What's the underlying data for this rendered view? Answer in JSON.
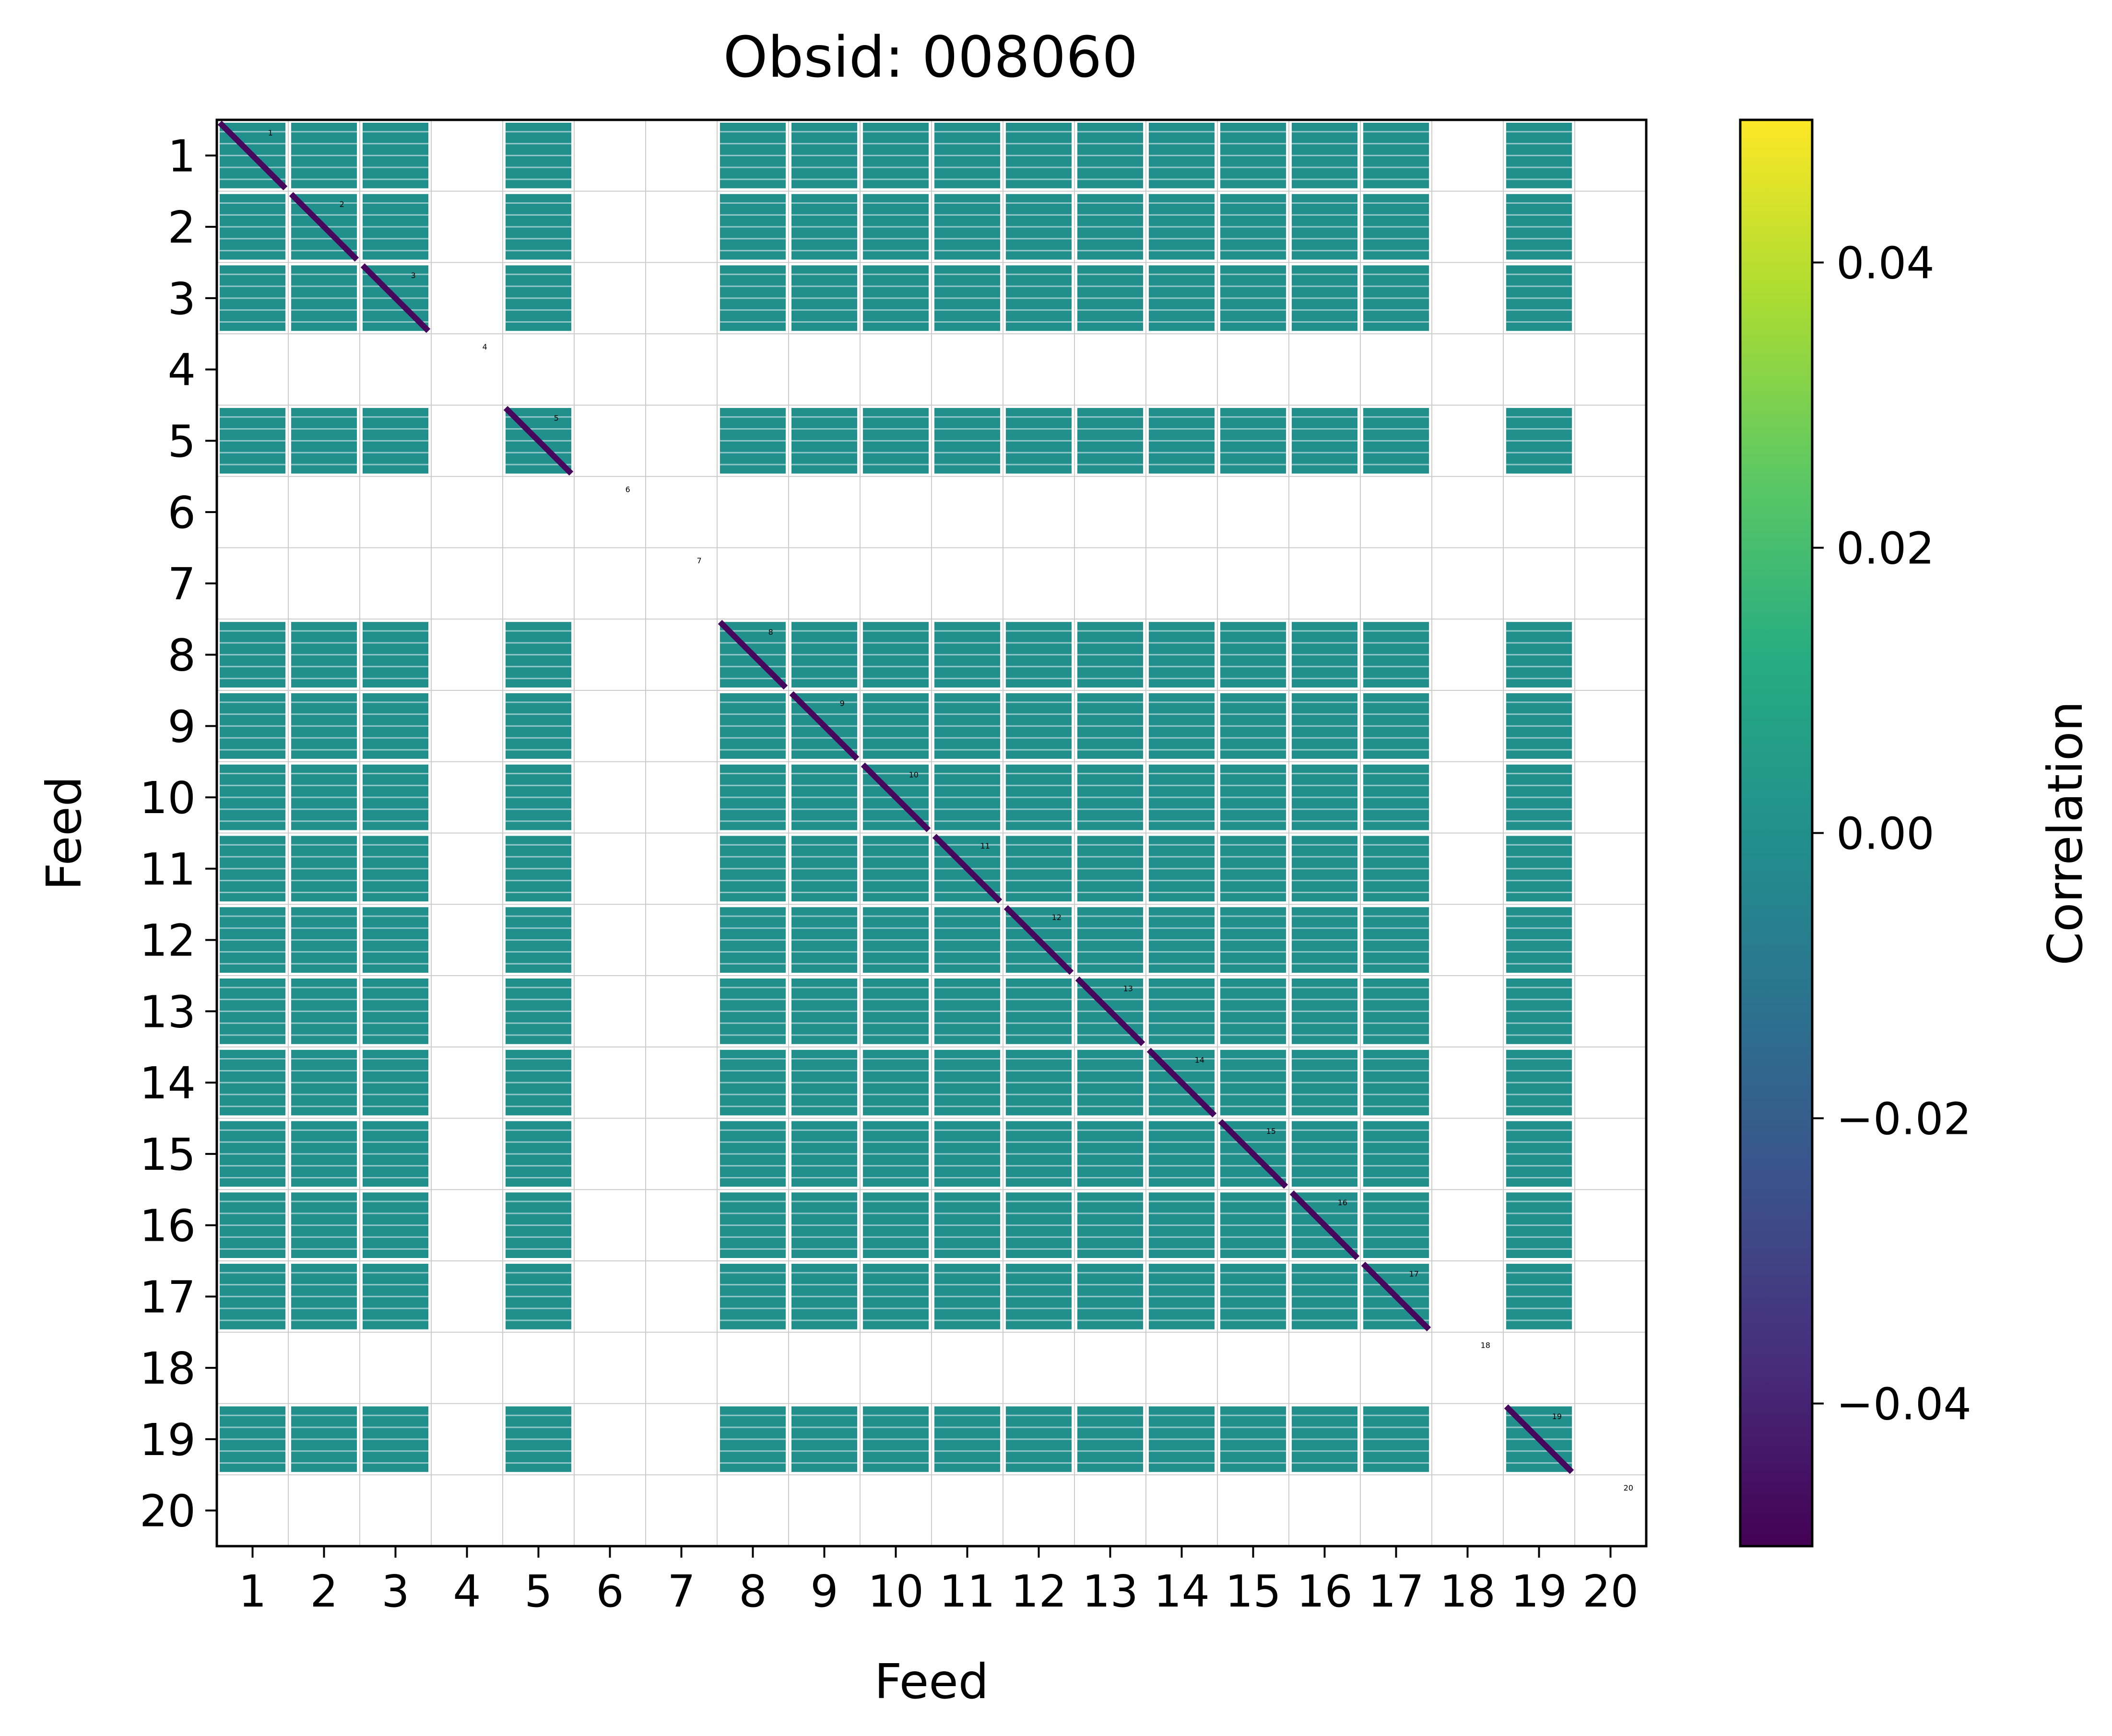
{
  "chart_data": {
    "type": "heatmap",
    "title": "Obsid: 008060",
    "xlabel": "Feed",
    "ylabel": "Feed",
    "categories": [
      "1",
      "2",
      "3",
      "4",
      "5",
      "6",
      "7",
      "8",
      "9",
      "10",
      "11",
      "12",
      "13",
      "14",
      "15",
      "16",
      "17",
      "18",
      "19",
      "20"
    ],
    "x_tick_labels": [
      "1",
      "2",
      "3",
      "4",
      "5",
      "6",
      "7",
      "8",
      "9",
      "10",
      "11",
      "12",
      "13",
      "14",
      "15",
      "16",
      "17",
      "18",
      "19",
      "20"
    ],
    "y_tick_labels": [
      "1",
      "2",
      "3",
      "4",
      "5",
      "6",
      "7",
      "8",
      "9",
      "10",
      "11",
      "12",
      "13",
      "14",
      "15",
      "16",
      "17",
      "18",
      "19",
      "20"
    ],
    "diagonal_labels": [
      "1",
      "2",
      "3",
      "4",
      "5",
      "6",
      "7",
      "8",
      "9",
      "10",
      "11",
      "12",
      "13",
      "14",
      "15",
      "16",
      "17",
      "18",
      "19",
      "20"
    ],
    "active_feeds": [
      "1",
      "2",
      "3",
      "5",
      "8",
      "9",
      "10",
      "11",
      "12",
      "13",
      "14",
      "15",
      "16",
      "17",
      "19"
    ],
    "empty_feeds": [
      "4",
      "6",
      "7",
      "18",
      "20"
    ],
    "fill_value": 0.0,
    "diagonal_value": -0.05,
    "colorbar": {
      "label": "Correlation",
      "vmin": -0.05,
      "vmax": 0.05,
      "ticks": [
        -0.04,
        -0.02,
        0.0,
        0.02,
        0.04
      ],
      "tick_labels": [
        "−0.04",
        "−0.02",
        "0.00",
        "0.02",
        "0.04"
      ],
      "colormap": "viridis"
    },
    "grid": true
  },
  "colors": {
    "fill": "#21908d",
    "diagonal": "#46085c",
    "grid": "#cccccc",
    "viridis_stops": [
      "#440154",
      "#472c7a",
      "#3b518b",
      "#2c718e",
      "#21908d",
      "#27ad81",
      "#5cc863",
      "#aadc32",
      "#fde725"
    ]
  }
}
